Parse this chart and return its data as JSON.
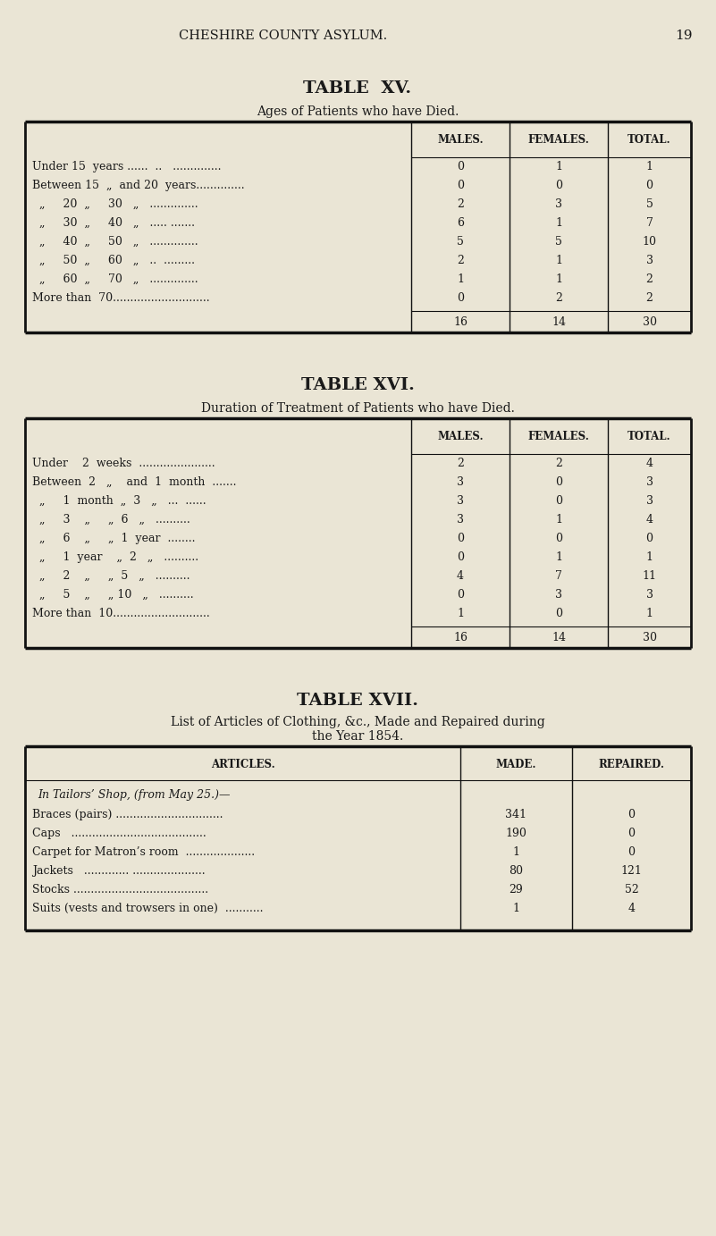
{
  "bg_color": "#EAE5D5",
  "text_color": "#1a1a1a",
  "page_header": "CHESHIRE COUNTY ASYLUM.",
  "page_number": "19",
  "table15_title": "TABLE  XV.",
  "table15_subtitle": "Ages of Patients who have Died.",
  "table15_col_headers": [
    "MALES.",
    "FEMALES.",
    "TOTAL."
  ],
  "table15_rows": [
    [
      "Under 15  years ......  ..   ..............",
      "0",
      "1",
      "1"
    ],
    [
      "Between 15  „  and 20  years..............",
      "0",
      "0",
      "0"
    ],
    [
      "  „     20  „     30   „   ..............",
      "2",
      "3",
      "5"
    ],
    [
      "  „     30  „     40   „   ..... .......",
      "6",
      "1",
      "7"
    ],
    [
      "  „     40  „     50   „   ..............",
      "5",
      "5",
      "10"
    ],
    [
      "  „     50  „     60   „   ..  .........",
      "2",
      "1",
      "3"
    ],
    [
      "  „     60  „     70   „   ..............",
      "1",
      "1",
      "2"
    ],
    [
      "More than  70............................",
      "0",
      "2",
      "2"
    ]
  ],
  "table15_totals": [
    "16",
    "14",
    "30"
  ],
  "table16_title": "TABLE XVI.",
  "table16_subtitle": "Duration of Treatment of Patients who have Died.",
  "table16_col_headers": [
    "MALES.",
    "FEMALES.",
    "TOTAL."
  ],
  "table16_rows": [
    [
      "Under    2  weeks  ......................",
      "2",
      "2",
      "4"
    ],
    [
      "Between  2   „    and  1  month  .......",
      "3",
      "0",
      "3"
    ],
    [
      "  „     1  month  „  3   „   ...  ......",
      "3",
      "0",
      "3"
    ],
    [
      "  „     3    „     „  6   „   ..........",
      "3",
      "1",
      "4"
    ],
    [
      "  „     6    „     „  1  year  ........",
      "0",
      "0",
      "0"
    ],
    [
      "  „     1  year    „  2   „   ..........",
      "0",
      "1",
      "1"
    ],
    [
      "  „     2    „     „  5   „   ..........",
      "4",
      "7",
      "11"
    ],
    [
      "  „     5    „     „ 10   „   ..........",
      "0",
      "3",
      "3"
    ],
    [
      "More than  10............................",
      "1",
      "0",
      "1"
    ]
  ],
  "table16_totals": [
    "16",
    "14",
    "30"
  ],
  "table17_title": "TABLE XVII.",
  "table17_subtitle1": "List of Articles of Clothing, &c., Made and Repaired during",
  "table17_subtitle2": "the Year 1854.",
  "table17_col_headers": [
    "ARTICLES.",
    "MADE.",
    "REPAIRED."
  ],
  "table17_section": "In Tailors’ Shop, (from May 25.)—",
  "table17_rows": [
    [
      "Braces (pairs) ...............................",
      "341",
      "0"
    ],
    [
      "Caps   .......................................",
      "190",
      "0"
    ],
    [
      "Carpet for Matron’s room  ....................",
      "1",
      "0"
    ],
    [
      "Jackets   ............. .....................",
      "80",
      "121"
    ],
    [
      "Stocks .......................................",
      "29",
      "52"
    ],
    [
      "Suits (vests and trowsers in one)  ...........",
      "1",
      "4"
    ]
  ]
}
